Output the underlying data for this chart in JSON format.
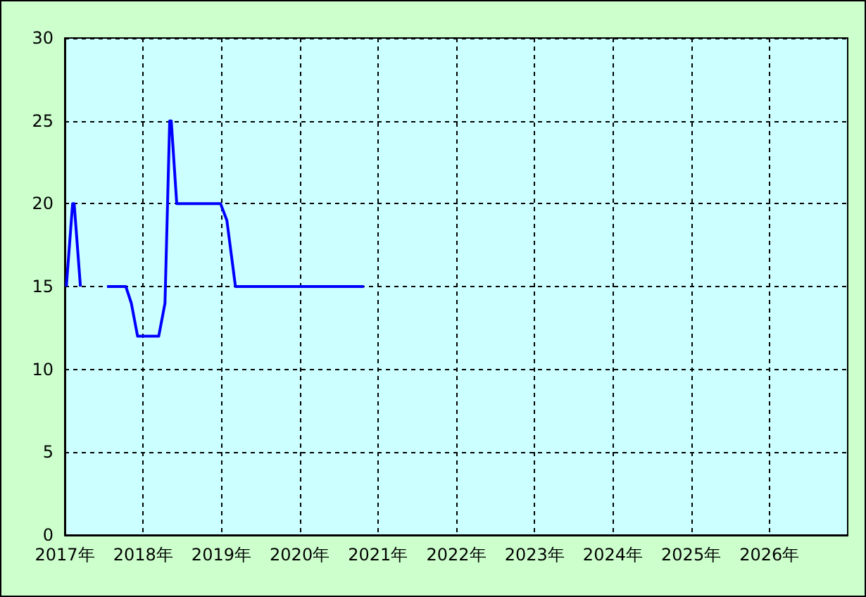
{
  "chart_data": {
    "type": "line",
    "x": [
      2017.02,
      2017.1,
      2017.12,
      2017.2,
      2017.37,
      2017.54,
      2017.78,
      2017.85,
      2017.93,
      2018.2,
      2018.28,
      2018.34,
      2018.36,
      2018.43,
      2018.99,
      2019.07,
      2019.18,
      2020.82
    ],
    "series": [
      {
        "color": "#0000ff",
        "values": [
          15,
          20,
          20,
          15,
          null,
          15,
          15,
          14,
          12,
          12,
          14,
          25,
          25,
          20,
          20,
          19,
          15,
          15
        ]
      }
    ],
    "xlim": [
      2017,
      2027
    ],
    "xticks": [
      {
        "value": 2017,
        "label": "2017年"
      },
      {
        "value": 2018,
        "label": "2018年"
      },
      {
        "value": 2019,
        "label": "2019年"
      },
      {
        "value": 2020,
        "label": "2020年"
      },
      {
        "value": 2021,
        "label": "2021年"
      },
      {
        "value": 2022,
        "label": "2022年"
      },
      {
        "value": 2023,
        "label": "2023年"
      },
      {
        "value": 2024,
        "label": "2024年"
      },
      {
        "value": 2025,
        "label": "2025年"
      },
      {
        "value": 2026,
        "label": "2026年"
      }
    ],
    "ylim": [
      0,
      30
    ],
    "yticks": [
      0,
      5,
      10,
      15,
      20,
      25,
      30
    ],
    "grid": true,
    "marker": "none",
    "line_style": "solid"
  }
}
